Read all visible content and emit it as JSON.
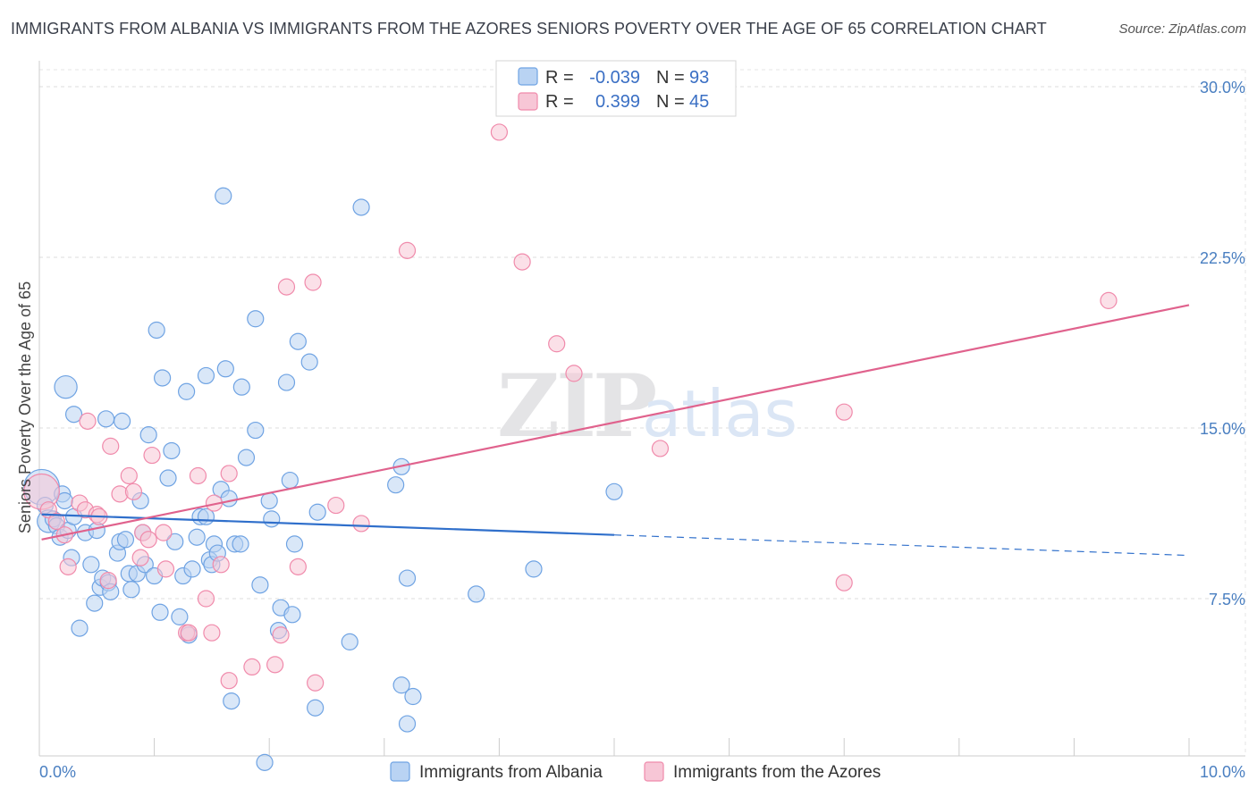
{
  "header": {
    "title": "IMMIGRANTS FROM ALBANIA VS IMMIGRANTS FROM THE AZORES SENIORS POVERTY OVER THE AGE OF 65 CORRELATION CHART",
    "source": "Source: ZipAtlas.com"
  },
  "chart_data": {
    "type": "scatter",
    "title": "IMMIGRANTS FROM ALBANIA VS IMMIGRANTS FROM THE AZORES SENIORS POVERTY OVER THE AGE OF 65 CORRELATION CHART",
    "xlabel": "",
    "ylabel": "Seniors Poverty Over the Age of 65",
    "xlim": [
      0,
      10
    ],
    "ylim": [
      0,
      30
    ],
    "x_tick_labels": [
      "0.0%",
      "10.0%"
    ],
    "y_ticks": [
      7.5,
      15.0,
      22.5,
      30.0
    ],
    "y_tick_labels": [
      "7.5%",
      "15.0%",
      "22.5%",
      "30.0%"
    ],
    "watermark": {
      "zip": "ZIP",
      "atlas": "atlas"
    },
    "legend": {
      "rows": [
        {
          "r_label": "R =",
          "r_value": "-0.039",
          "n_label": "N =",
          "n_value": "93"
        },
        {
          "r_label": "R =",
          "r_value": "0.399",
          "n_label": "N =",
          "n_value": "45"
        }
      ]
    },
    "series": [
      {
        "name": "Immigrants from Albania",
        "color": "#6fa3e3",
        "fill": "#b9d3f3",
        "line_color": "#2f6fcb",
        "trend": {
          "x_start": 0.02,
          "y_start": 11.2,
          "x_end": 5.0,
          "y_end": 10.3,
          "dash_x_end": 10.0,
          "dash_y_end": 9.4
        },
        "points": [
          {
            "x": 0.02,
            "y": 12.4,
            "s": 2.2
          },
          {
            "x": 0.05,
            "y": 11.6
          },
          {
            "x": 0.08,
            "y": 10.9,
            "s": 1.4
          },
          {
            "x": 0.12,
            "y": 11.0
          },
          {
            "x": 0.15,
            "y": 10.7
          },
          {
            "x": 0.18,
            "y": 10.2
          },
          {
            "x": 0.2,
            "y": 12.1
          },
          {
            "x": 0.22,
            "y": 11.8
          },
          {
            "x": 0.23,
            "y": 16.8,
            "s": 1.4
          },
          {
            "x": 0.25,
            "y": 10.5
          },
          {
            "x": 0.28,
            "y": 9.3
          },
          {
            "x": 0.3,
            "y": 11.1
          },
          {
            "x": 0.3,
            "y": 15.6
          },
          {
            "x": 0.35,
            "y": 6.2
          },
          {
            "x": 0.4,
            "y": 10.4
          },
          {
            "x": 0.45,
            "y": 9.0
          },
          {
            "x": 0.48,
            "y": 7.3
          },
          {
            "x": 0.5,
            "y": 10.5
          },
          {
            "x": 0.53,
            "y": 8.0
          },
          {
            "x": 0.55,
            "y": 8.4
          },
          {
            "x": 0.58,
            "y": 15.4
          },
          {
            "x": 0.6,
            "y": 8.2
          },
          {
            "x": 0.62,
            "y": 7.8
          },
          {
            "x": 0.68,
            "y": 9.5
          },
          {
            "x": 0.7,
            "y": 10.0
          },
          {
            "x": 0.72,
            "y": 15.3
          },
          {
            "x": 0.75,
            "y": 10.1
          },
          {
            "x": 0.78,
            "y": 8.6
          },
          {
            "x": 0.8,
            "y": 7.9
          },
          {
            "x": 0.85,
            "y": 8.6
          },
          {
            "x": 0.88,
            "y": 11.8
          },
          {
            "x": 0.9,
            "y": 10.4
          },
          {
            "x": 0.92,
            "y": 9.0
          },
          {
            "x": 0.95,
            "y": 14.7
          },
          {
            "x": 1.0,
            "y": 8.5
          },
          {
            "x": 1.02,
            "y": 19.3
          },
          {
            "x": 1.05,
            "y": 6.9
          },
          {
            "x": 1.07,
            "y": 17.2
          },
          {
            "x": 1.12,
            "y": 12.8
          },
          {
            "x": 1.15,
            "y": 14.0
          },
          {
            "x": 1.18,
            "y": 10.0
          },
          {
            "x": 1.22,
            "y": 6.7
          },
          {
            "x": 1.25,
            "y": 8.5
          },
          {
            "x": 1.28,
            "y": 16.6
          },
          {
            "x": 1.3,
            "y": 5.9
          },
          {
            "x": 1.33,
            "y": 8.8
          },
          {
            "x": 1.37,
            "y": 10.2
          },
          {
            "x": 1.4,
            "y": 11.1
          },
          {
            "x": 1.45,
            "y": 11.1
          },
          {
            "x": 1.45,
            "y": 17.3
          },
          {
            "x": 1.48,
            "y": 9.2
          },
          {
            "x": 1.5,
            "y": 9.0
          },
          {
            "x": 1.52,
            "y": 9.9
          },
          {
            "x": 1.55,
            "y": 9.5
          },
          {
            "x": 1.58,
            "y": 12.3
          },
          {
            "x": 1.6,
            "y": 25.2
          },
          {
            "x": 1.62,
            "y": 17.6
          },
          {
            "x": 1.65,
            "y": 11.9
          },
          {
            "x": 1.67,
            "y": 3.0
          },
          {
            "x": 1.7,
            "y": 9.9
          },
          {
            "x": 1.75,
            "y": 9.9
          },
          {
            "x": 1.76,
            "y": 16.8
          },
          {
            "x": 1.8,
            "y": 13.7
          },
          {
            "x": 1.88,
            "y": 19.8
          },
          {
            "x": 1.88,
            "y": 14.9
          },
          {
            "x": 1.92,
            "y": 8.1
          },
          {
            "x": 1.96,
            "y": 0.3
          },
          {
            "x": 2.0,
            "y": 11.8
          },
          {
            "x": 2.02,
            "y": 11.0
          },
          {
            "x": 2.08,
            "y": 6.1
          },
          {
            "x": 2.1,
            "y": 7.1
          },
          {
            "x": 2.15,
            "y": 17.0
          },
          {
            "x": 2.18,
            "y": 12.7
          },
          {
            "x": 2.2,
            "y": 6.8
          },
          {
            "x": 2.22,
            "y": 9.9
          },
          {
            "x": 2.25,
            "y": 18.8
          },
          {
            "x": 2.35,
            "y": 17.9
          },
          {
            "x": 2.4,
            "y": 2.7
          },
          {
            "x": 2.42,
            "y": 11.3
          },
          {
            "x": 2.7,
            "y": 5.6
          },
          {
            "x": 2.8,
            "y": 24.7
          },
          {
            "x": 3.1,
            "y": 12.5
          },
          {
            "x": 3.2,
            "y": 8.4
          },
          {
            "x": 3.15,
            "y": 3.7
          },
          {
            "x": 3.15,
            "y": 13.3
          },
          {
            "x": 3.2,
            "y": 2.0
          },
          {
            "x": 3.25,
            "y": 3.2
          },
          {
            "x": 3.8,
            "y": 7.7
          },
          {
            "x": 4.3,
            "y": 8.8
          },
          {
            "x": 5.0,
            "y": 12.2
          }
        ]
      },
      {
        "name": "Immigrants from the Azores",
        "color": "#f08aab",
        "fill": "#f7c6d6",
        "line_color": "#e0628d",
        "trend": {
          "x_start": 0.02,
          "y_start": 10.1,
          "x_end": 10.0,
          "y_end": 20.4
        },
        "points": [
          {
            "x": 0.02,
            "y": 12.2,
            "s": 2.2
          },
          {
            "x": 0.08,
            "y": 11.4
          },
          {
            "x": 0.15,
            "y": 10.9
          },
          {
            "x": 0.22,
            "y": 10.3
          },
          {
            "x": 0.25,
            "y": 8.9
          },
          {
            "x": 0.35,
            "y": 11.7
          },
          {
            "x": 0.4,
            "y": 11.4
          },
          {
            "x": 0.42,
            "y": 15.3
          },
          {
            "x": 0.5,
            "y": 11.2
          },
          {
            "x": 0.52,
            "y": 11.1
          },
          {
            "x": 0.6,
            "y": 8.3
          },
          {
            "x": 0.62,
            "y": 14.2
          },
          {
            "x": 0.7,
            "y": 12.1
          },
          {
            "x": 0.78,
            "y": 12.9
          },
          {
            "x": 0.82,
            "y": 12.2
          },
          {
            "x": 0.88,
            "y": 9.3
          },
          {
            "x": 0.9,
            "y": 10.4
          },
          {
            "x": 0.95,
            "y": 10.1
          },
          {
            "x": 0.98,
            "y": 13.8
          },
          {
            "x": 1.08,
            "y": 10.4
          },
          {
            "x": 1.1,
            "y": 8.8
          },
          {
            "x": 1.28,
            "y": 6.0
          },
          {
            "x": 1.3,
            "y": 6.0
          },
          {
            "x": 1.38,
            "y": 12.9
          },
          {
            "x": 1.45,
            "y": 7.5
          },
          {
            "x": 1.5,
            "y": 6.0
          },
          {
            "x": 1.52,
            "y": 11.7
          },
          {
            "x": 1.58,
            "y": 9.0
          },
          {
            "x": 1.65,
            "y": 3.9
          },
          {
            "x": 1.65,
            "y": 13.0
          },
          {
            "x": 1.85,
            "y": 4.5
          },
          {
            "x": 2.05,
            "y": 4.6
          },
          {
            "x": 2.1,
            "y": 5.9
          },
          {
            "x": 2.15,
            "y": 21.2
          },
          {
            "x": 2.25,
            "y": 8.9
          },
          {
            "x": 2.38,
            "y": 21.4
          },
          {
            "x": 2.4,
            "y": 3.8
          },
          {
            "x": 2.58,
            "y": 11.6
          },
          {
            "x": 2.8,
            "y": 10.8
          },
          {
            "x": 3.2,
            "y": 22.8
          },
          {
            "x": 4.0,
            "y": 28.0
          },
          {
            "x": 4.2,
            "y": 22.3
          },
          {
            "x": 4.5,
            "y": 18.7
          },
          {
            "x": 4.65,
            "y": 17.4
          },
          {
            "x": 5.4,
            "y": 14.1
          },
          {
            "x": 7.0,
            "y": 15.7
          },
          {
            "x": 7.0,
            "y": 8.2
          },
          {
            "x": 9.3,
            "y": 20.6
          }
        ]
      }
    ]
  }
}
